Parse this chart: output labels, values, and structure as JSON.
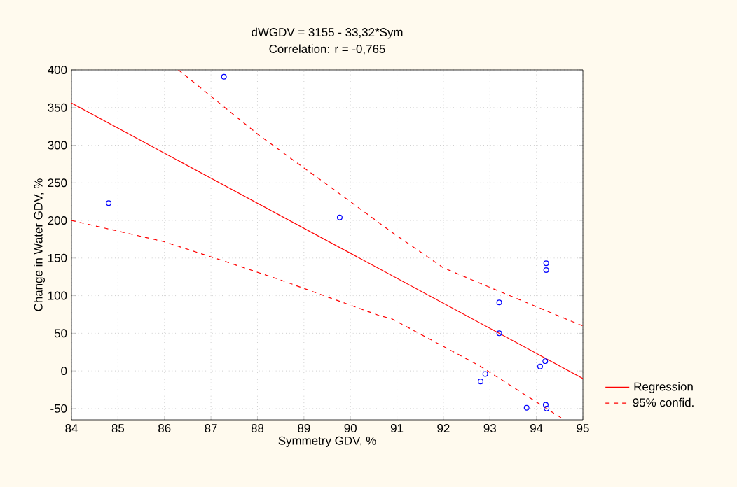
{
  "chart_data": {
    "type": "scatter",
    "title": "dWGDV = 3155 - 33,32*Sym",
    "subtitle": "Correlation: r = -0,765",
    "xlabel": "Symmetry GDV, %",
    "ylabel": "Change in Water GDV, %",
    "xlim": [
      84,
      95
    ],
    "xticks": [
      84,
      85,
      86,
      87,
      88,
      89,
      90,
      91,
      92,
      93,
      94,
      95
    ],
    "ylim": [
      -65,
      400
    ],
    "yticks": [
      -50,
      0,
      50,
      100,
      150,
      200,
      250,
      300,
      350,
      400
    ],
    "grid": true,
    "legend": "bottom right",
    "series": [
      {
        "color": "#0000ff",
        "marker": "circle",
        "x": [
          84.8,
          87.28,
          89.77,
          94.21,
          94.21,
          93.2,
          93.2,
          94.19,
          94.08,
          92.9,
          92.8,
          93.79,
          94.2,
          94.22
        ],
        "values": [
          223,
          391,
          204,
          143,
          134,
          91,
          50,
          13,
          6,
          -4,
          -14,
          -49,
          -45,
          -50
        ]
      },
      {
        "type": "line",
        "name": "Regression",
        "color": "#ff0000",
        "line_style": "solid",
        "x": [
          84,
          95
        ],
        "values": [
          356,
          -10
        ]
      },
      {
        "type": "line",
        "name": "95% confid.",
        "color": "#ff0000",
        "line_style": "dashed",
        "x": [
          86.3,
          88.04,
          89.69,
          90.9,
          92.0,
          93.0,
          94.91,
          95
        ],
        "values": [
          400,
          313,
          239,
          184,
          137,
          111,
          62,
          60
        ]
      },
      {
        "type": "line",
        "color": "#ff0000",
        "line_style": "dashed",
        "x": [
          84,
          85.98,
          87.28,
          88.49,
          90.6,
          90.9,
          92.8,
          94.6
        ],
        "values": [
          200,
          172,
          146,
          121,
          74,
          69,
          6,
          -65
        ]
      }
    ]
  }
}
